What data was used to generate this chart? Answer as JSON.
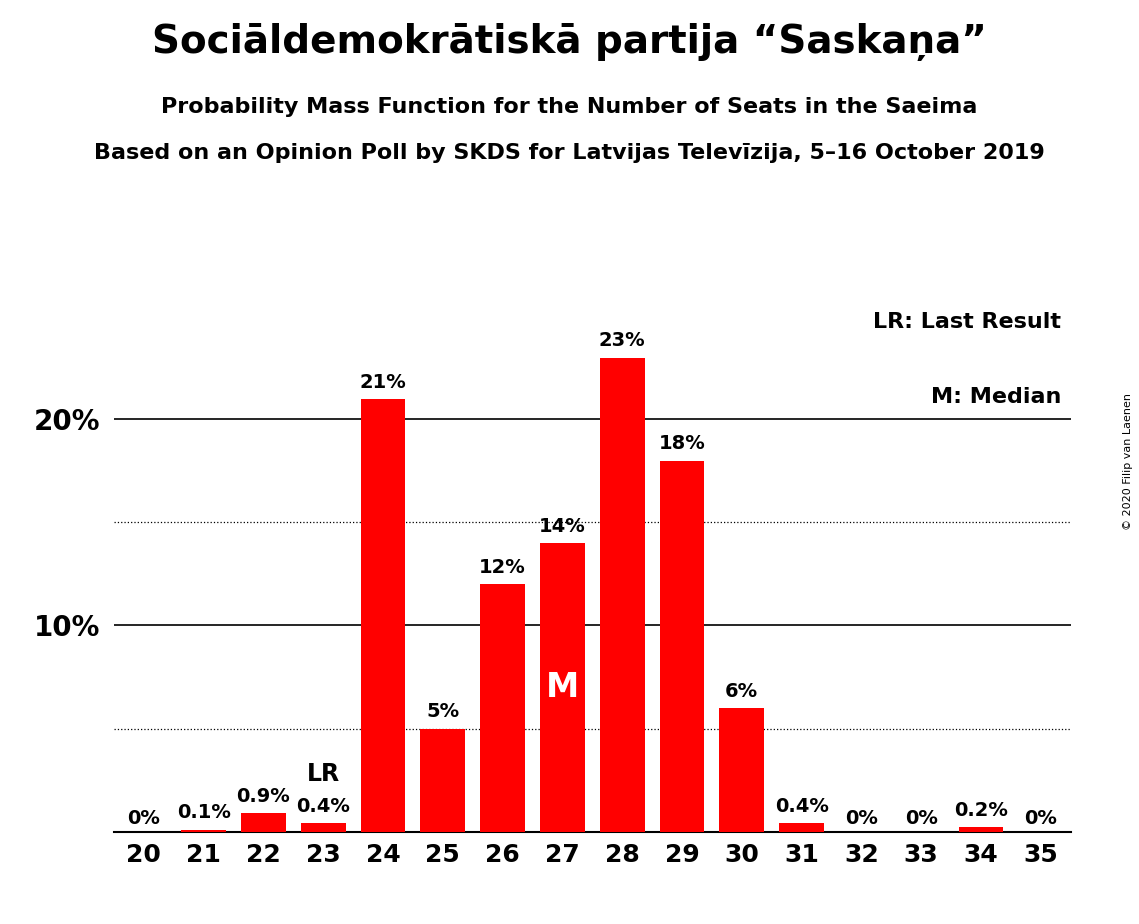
{
  "title_actual": "Sociāldemokrātiskā partija “Saskaņa”",
  "subtitle1": "Probability Mass Function for the Number of Seats in the Saeima",
  "subtitle2": "Based on an Opinion Poll by SKDS for Latvijas Televīzija, 5–16 October 2019",
  "copyright": "© 2020 Filip van Laenen",
  "seats": [
    20,
    21,
    22,
    23,
    24,
    25,
    26,
    27,
    28,
    29,
    30,
    31,
    32,
    33,
    34,
    35
  ],
  "probabilities": [
    0.0,
    0.1,
    0.9,
    0.4,
    21.0,
    5.0,
    12.0,
    14.0,
    23.0,
    18.0,
    6.0,
    0.4,
    0.0,
    0.0,
    0.2,
    0.0
  ],
  "bar_color": "#FF0000",
  "last_result": 23,
  "median": 27,
  "legend_lr": "LR: Last Result",
  "legend_m": "M: Median",
  "ylim": [
    0,
    26
  ],
  "background_color": "#FFFFFF",
  "dotted_grid_values": [
    5,
    15
  ],
  "solid_grid_values": [
    10,
    20
  ],
  "title_fontsize": 28,
  "subtitle1_fontsize": 16,
  "subtitle2_fontsize": 16,
  "bar_label_fontsize": 14,
  "ytick_fontsize": 20,
  "xtick_fontsize": 18,
  "legend_fontsize": 16,
  "copyright_fontsize": 8,
  "lr_label_fontsize": 17,
  "m_label_fontsize": 24,
  "bar_width": 0.75
}
